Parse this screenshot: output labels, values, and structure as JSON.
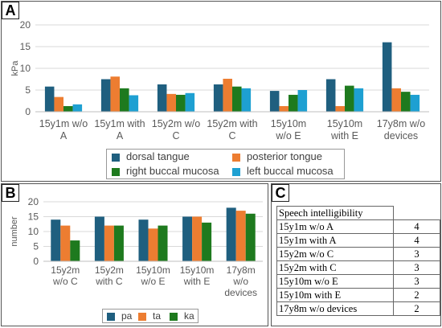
{
  "panels": {
    "A": "A",
    "B": "B",
    "C": "C"
  },
  "chart_data": [
    {
      "type": "bar",
      "ylabel": "kPa",
      "ylim": [
        0,
        20
      ],
      "yticks": [
        0,
        5,
        10,
        15,
        20
      ],
      "grid": true,
      "legend_position": "bottom",
      "categories": [
        [
          "15y1m w/o",
          "A"
        ],
        [
          "15y1m with",
          "A"
        ],
        [
          "15y2m w/o",
          "C"
        ],
        [
          "15y2m with",
          "C"
        ],
        [
          "15y10m",
          "w/o E"
        ],
        [
          "15y10m",
          "with E"
        ],
        [
          "17y8m w/o",
          "devices"
        ]
      ],
      "series": [
        {
          "name": "dorsal tangue",
          "color": "#1f5f7f",
          "values": [
            5.8,
            7.5,
            6.3,
            6.3,
            4.8,
            7.5,
            16
          ]
        },
        {
          "name": "posterior tongue",
          "color": "#ed7d31",
          "values": [
            3.4,
            8.1,
            4.1,
            7.6,
            1.3,
            1.3,
            5.4
          ]
        },
        {
          "name": "right buccal mucosa",
          "color": "#1e7a1e",
          "values": [
            1.3,
            5.4,
            3.9,
            5.8,
            3.9,
            6.0,
            4.6
          ]
        },
        {
          "name": "left buccal mucosa",
          "color": "#1ea0d2",
          "values": [
            1.7,
            3.8,
            4.3,
            5.4,
            5.0,
            5.4,
            3.9
          ]
        }
      ]
    },
    {
      "type": "bar",
      "ylabel": "number",
      "ylim": [
        0,
        20
      ],
      "yticks": [
        0,
        5,
        10,
        15,
        20
      ],
      "grid": true,
      "legend_position": "bottom",
      "categories": [
        [
          "15y2m",
          "w/o C"
        ],
        [
          "15y2m",
          "with C"
        ],
        [
          "15y10m",
          "w/o E"
        ],
        [
          "15y10m",
          "with E"
        ],
        [
          "17y8m",
          "w/o",
          "devices"
        ]
      ],
      "series": [
        {
          "name": "pa",
          "color": "#1f5f7f",
          "values": [
            14,
            15,
            14,
            15,
            18
          ]
        },
        {
          "name": "ta",
          "color": "#ed7d31",
          "values": [
            12,
            12,
            11,
            15,
            17
          ]
        },
        {
          "name": "ka",
          "color": "#1e7a1e",
          "values": [
            7,
            12,
            12,
            13,
            16
          ]
        }
      ]
    },
    {
      "type": "table",
      "header": "Speech intelligibility",
      "rows": [
        {
          "label": "15y1m w/o A",
          "value": 4
        },
        {
          "label": "15y1m with A",
          "value": 4
        },
        {
          "label": "15y2m w/o C",
          "value": 3
        },
        {
          "label": "15y2m with C",
          "value": 3
        },
        {
          "label": "15y10m w/o E",
          "value": 3
        },
        {
          "label": "15y10m with E",
          "value": 2
        },
        {
          "label": "17y8m w/o devices",
          "value": 2
        }
      ]
    }
  ]
}
